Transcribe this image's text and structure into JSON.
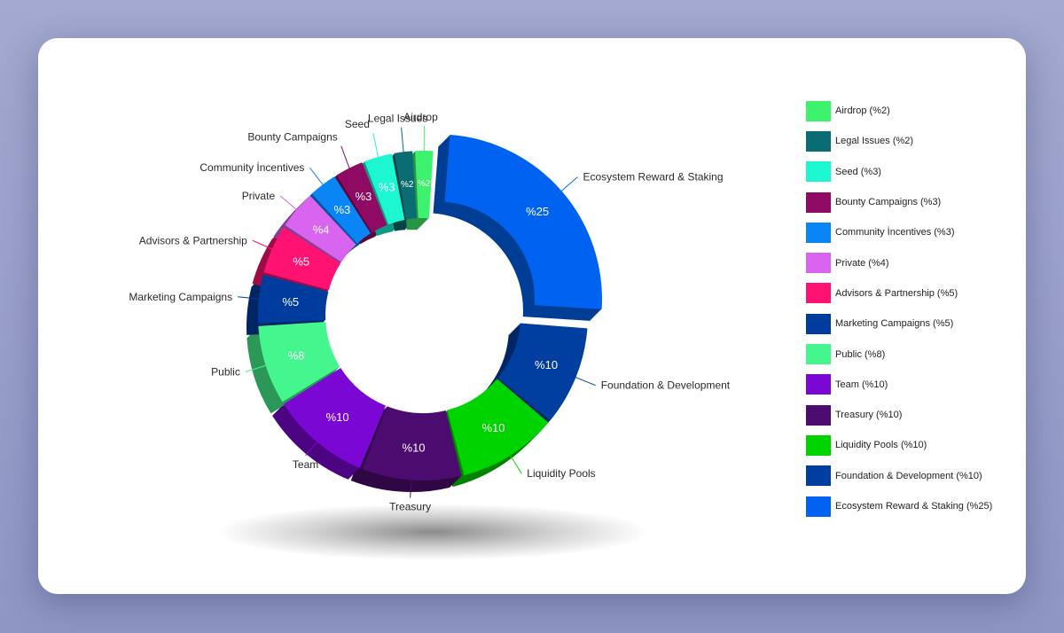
{
  "chart_data": {
    "type": "pie",
    "variant": "exploded-3d-donut",
    "categories": [
      "Ecosystem Reward & Staking",
      "Foundation & Development",
      "Liquidity Pools",
      "Treasury",
      "Team",
      "Public",
      "Marketing Campaigns",
      "Advisors & Partnership",
      "Private",
      "Community İncentives",
      "Bounty Campaigns",
      "Seed",
      "Legal Issues",
      "Airdrop"
    ],
    "values": [
      25,
      10,
      10,
      10,
      10,
      8,
      5,
      5,
      4,
      3,
      3,
      3,
      2,
      2
    ],
    "slice_labels": [
      "%25",
      "%10",
      "%10",
      "%10",
      "%10",
      "%8",
      "%5",
      "%5",
      "%4",
      "%3",
      "%3",
      "%3",
      "%2",
      "%2"
    ],
    "colors": [
      "#0062f0",
      "#003fa0",
      "#00d400",
      "#4c0b6e",
      "#7a07d3",
      "#45f58e",
      "#003c9e",
      "#ff1272",
      "#d864f0",
      "#0a85f5",
      "#8f0a62",
      "#1cf7d2",
      "#0a6d73",
      "#3df26c"
    ],
    "exploded": [
      "Ecosystem Reward & Staking"
    ],
    "legend": {
      "position": "right",
      "entries": [
        "Airdrop (%2)",
        "Legal Issues (%2)",
        "Seed (%3)",
        "Bounty Campaigns (%3)",
        "Community İncentives (%3)",
        "Private (%4)",
        "Advisors & Partnership (%5)",
        "Marketing Campaigns (%5)",
        "Public (%8)",
        "Team (%10)",
        "Treasury (%10)",
        "Liquidity Pools (%10)",
        "Foundation & Development (%10)",
        "Ecosystem Reward & Staking (%25)"
      ],
      "colors": [
        "#3df26c",
        "#0a6d73",
        "#1cf7d2",
        "#8f0a62",
        "#0a85f5",
        "#d864f0",
        "#ff1272",
        "#003c9e",
        "#45f58e",
        "#7a07d3",
        "#4c0b6e",
        "#00d400",
        "#003fa0",
        "#0062f0"
      ]
    }
  }
}
